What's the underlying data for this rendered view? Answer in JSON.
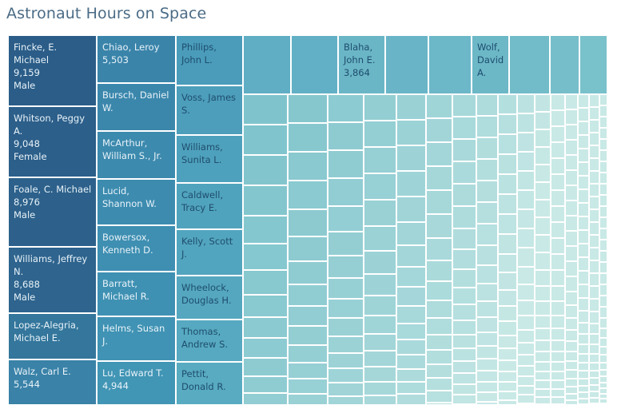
{
  "chart_data": {
    "type": "treemap",
    "title": "Astronaut Hours on Space",
    "named_rects": [
      {
        "name": "Fincke, E. Michael",
        "text": "Fincke, E.\nMichael\n9,159\nMale",
        "value": 9159,
        "gender": "Male",
        "color": "#2b5d88"
      },
      {
        "name": "Whitson, Peggy A.",
        "text": "Whitson, Peggy\nA.\n9,048\nFemale",
        "value": 9048,
        "gender": "Female",
        "color": "#2c5f8a"
      },
      {
        "name": "Foale, C. Michael",
        "text": "Foale, C. Michael\n8,976\nMale",
        "value": 8976,
        "gender": "Male",
        "color": "#2d618b"
      },
      {
        "name": "Williams, Jeffrey N.",
        "text": "Williams, Jeffrey\nN.\n8,688\nMale",
        "value": 8688,
        "gender": "Male",
        "color": "#2e648e"
      },
      {
        "name": "Lopez-Alegria, Michael E.",
        "text": "Lopez-Alegria,\nMichael E.",
        "value": 6460,
        "color": "#34769c"
      },
      {
        "name": "Walz, Carl E.",
        "text": "Walz, Carl E.\n5,544",
        "value": 5544,
        "color": "#3a82a8"
      },
      {
        "name": "Chiao, Leroy",
        "text": "Chiao, Leroy\n5,503",
        "value": 5503,
        "color": "#3a84aa"
      },
      {
        "name": "Bursch, Daniel W.",
        "text": "Bursch, Daniel\nW.",
        "value": 5400,
        "color": "#3b87ac"
      },
      {
        "name": "McArthur, William S., Jr.",
        "text": "McArthur,\nWilliam S., Jr.",
        "value": 5300,
        "color": "#3c8aae"
      },
      {
        "name": "Lucid, Shannon W.",
        "text": "Lucid,\nShannon W.",
        "value": 5200,
        "color": "#3d8cb0"
      },
      {
        "name": "Bowersox, Kenneth D.",
        "text": "Bowersox,\nKenneth D.",
        "value": 5100,
        "color": "#3e8fb2"
      },
      {
        "name": "Barratt, Michael R.",
        "text": "Barratt,\nMichael R.",
        "value": 5000,
        "color": "#3f91b3"
      },
      {
        "name": "Helms, Susan J.",
        "text": "Helms, Susan\nJ.",
        "value": 4960,
        "color": "#4093b4"
      },
      {
        "name": "Lu, Edward T.",
        "text": "Lu, Edward T.\n4,944",
        "value": 4944,
        "color": "#4195b5"
      },
      {
        "name": "Phillips, John L.",
        "text": "Phillips,\nJohn L.",
        "value": 4900,
        "color": "#4a9cba"
      },
      {
        "name": "Voss, James S.",
        "text": "Voss, James\nS.",
        "value": 4800,
        "color": "#4c9ebb"
      },
      {
        "name": "Williams, Sunita L.",
        "text": "Williams,\nSunita L.",
        "value": 4750,
        "color": "#4ea1bc"
      },
      {
        "name": "Caldwell, Tracy E.",
        "text": "Caldwell,\nTracy E.",
        "value": 4700,
        "color": "#50a3bd"
      },
      {
        "name": "Kelly, Scott J.",
        "text": "Kelly, Scott\nJ.",
        "value": 4650,
        "color": "#52a5be"
      },
      {
        "name": "Wheelock, Douglas H.",
        "text": "Wheelock,\nDouglas H.",
        "value": 4600,
        "color": "#54a7bf"
      },
      {
        "name": "Thomas, Andrew S.",
        "text": "Thomas,\nAndrew S.",
        "value": 4550,
        "color": "#56a9c0"
      },
      {
        "name": "Pettit, Donald R.",
        "text": "Pettit,\nDonald R.",
        "value": 4500,
        "color": "#58abc1"
      },
      {
        "name": "Blaha, John E.",
        "text": "Blaha,\nJohn E.\n3,864",
        "value": 3864,
        "color": "#6ab6c6"
      },
      {
        "name": "Wolf, David A.",
        "text": "Wolf,\nDavid\nA.",
        "value": 3850,
        "color": "#6cb8c7"
      }
    ],
    "legend": "none",
    "color_scale": [
      "#2b5d88",
      "#c9e9e6"
    ]
  }
}
